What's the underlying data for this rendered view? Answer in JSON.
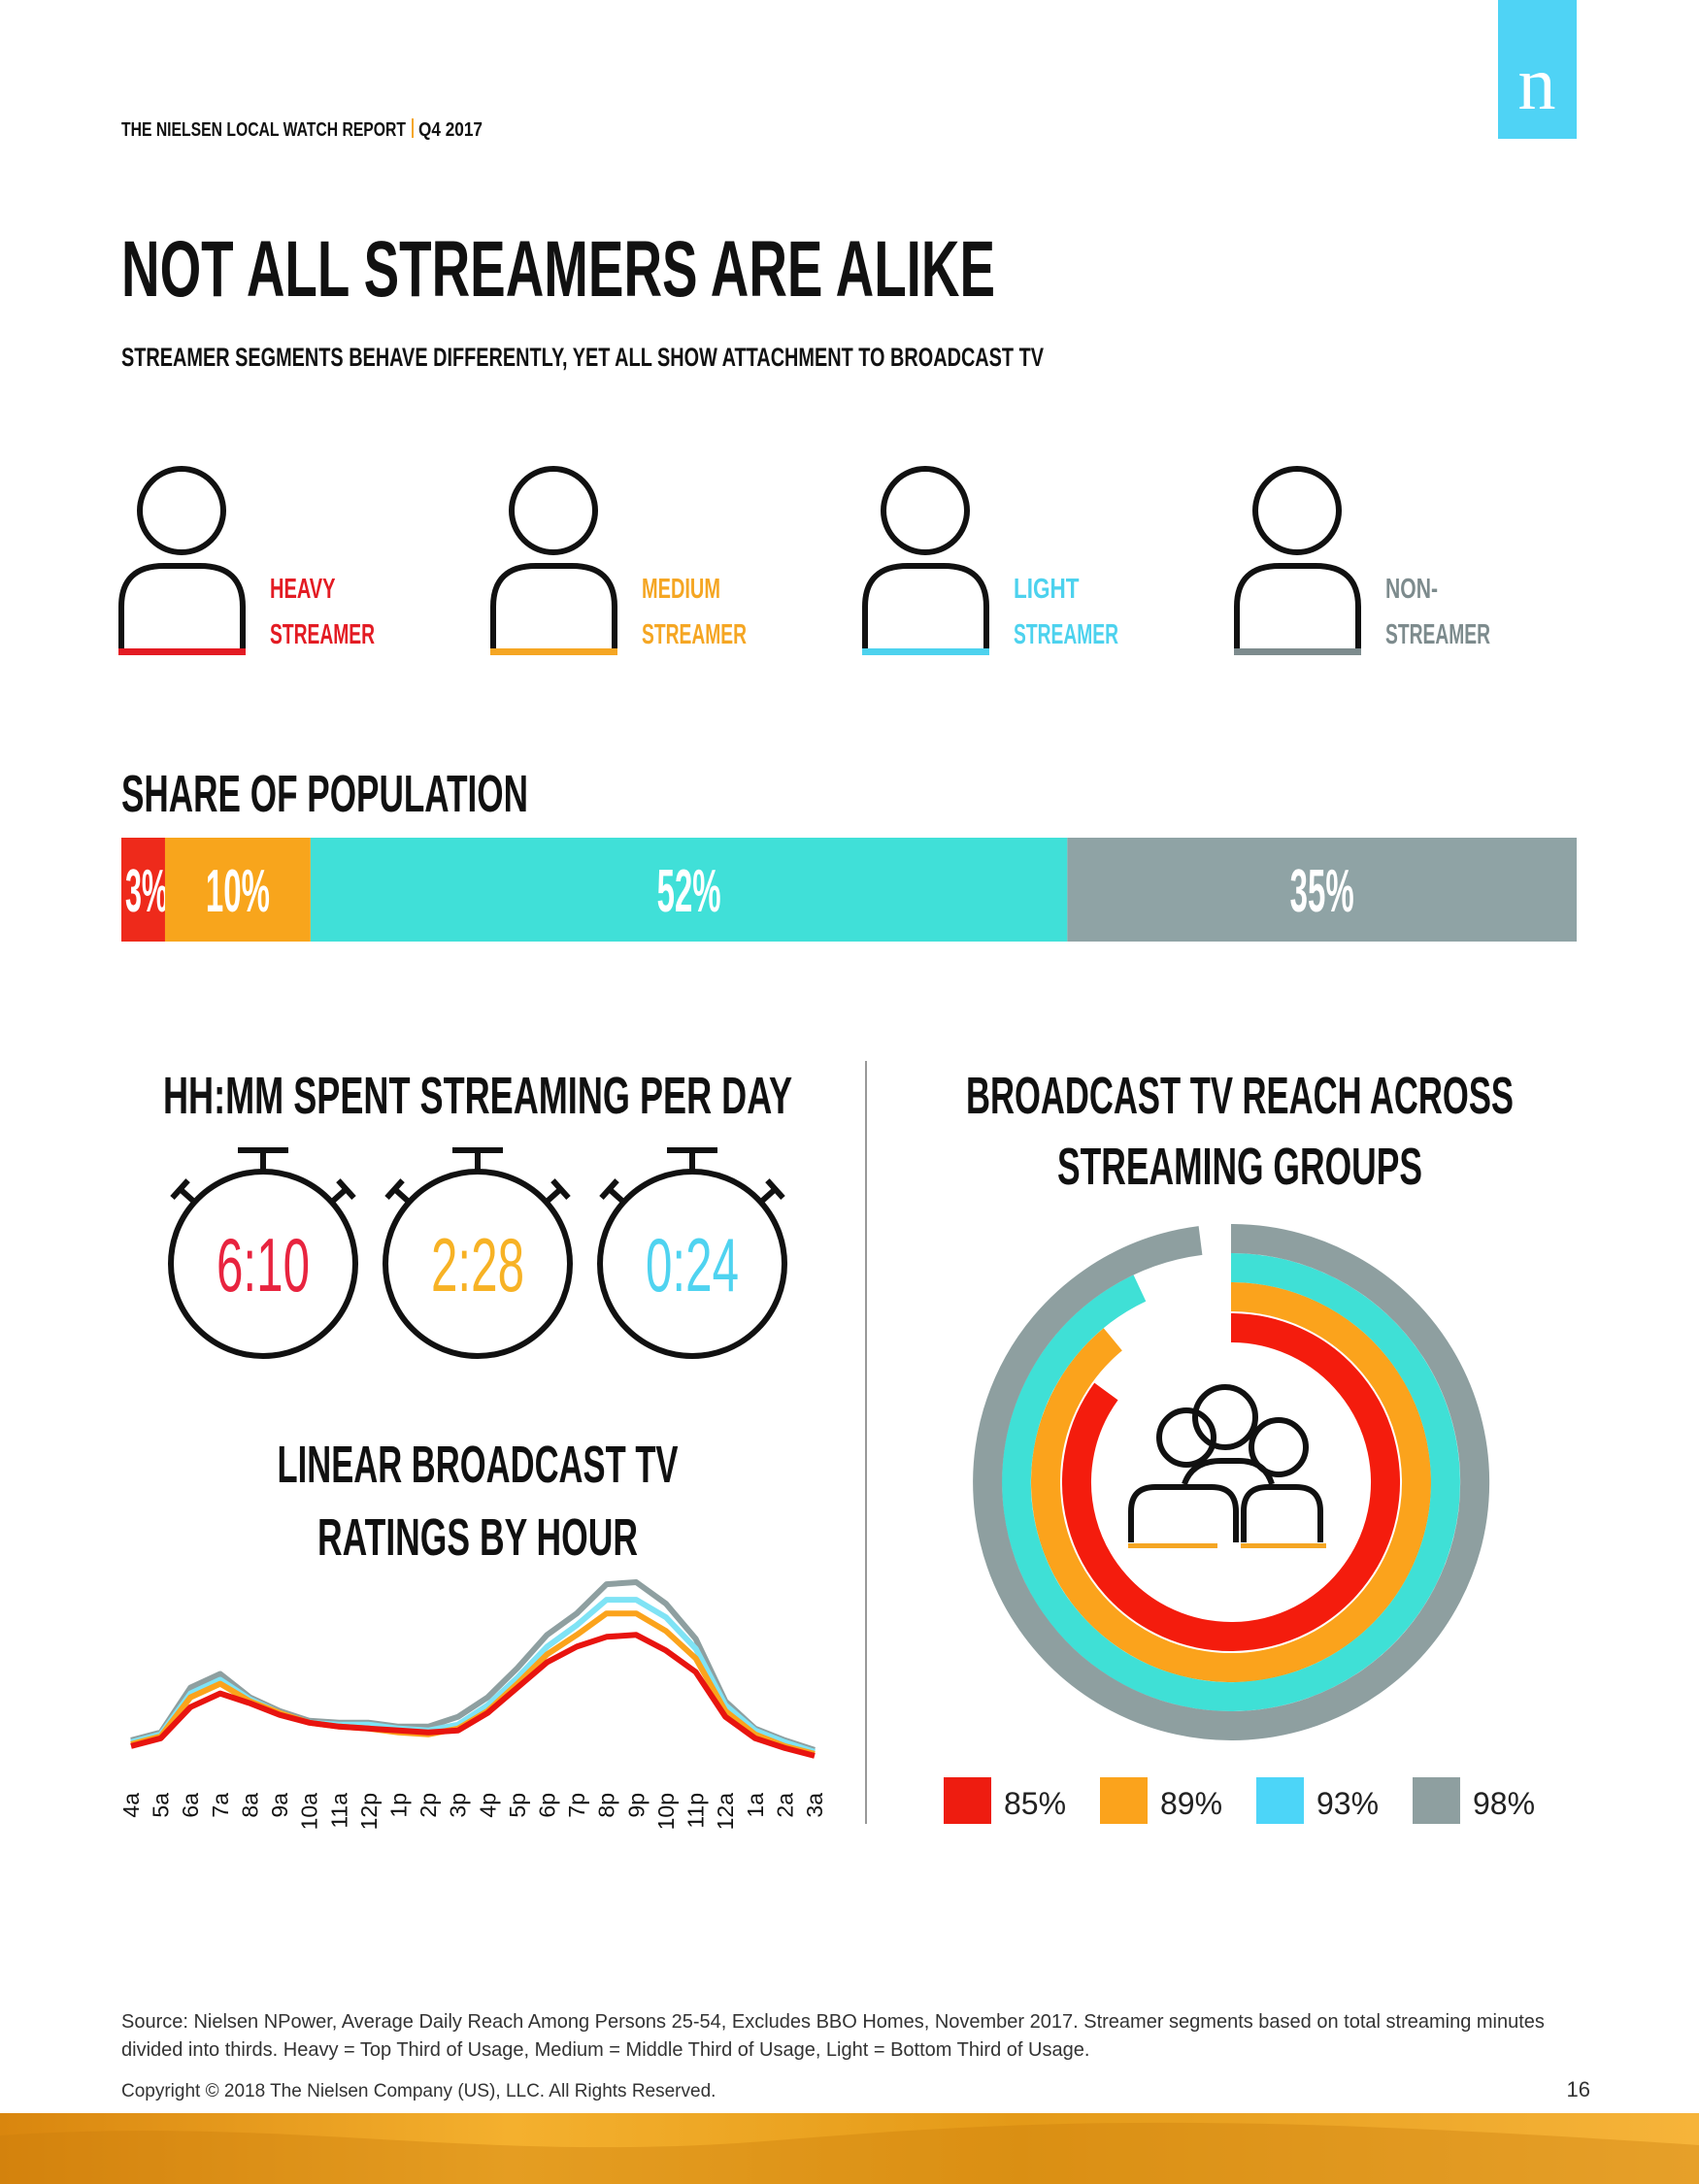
{
  "header": {
    "report": "THE NIELSEN LOCAL WATCH REPORT",
    "quarter": "Q4 2017",
    "logo": "n"
  },
  "title": "NOT ALL STREAMERS ARE ALIKE",
  "subtitle": "STREAMER SEGMENTS BEHAVE DIFFERENTLY, YET ALL SHOW ATTACHMENT TO BROADCAST TV",
  "segments": [
    {
      "lines": [
        "HEAVY",
        "STREAMER"
      ],
      "color": "#e31b23"
    },
    {
      "lines": [
        "MEDIUM",
        "STREAMER"
      ],
      "color": "#f5a623"
    },
    {
      "lines": [
        "LIGHT",
        "STREAMER"
      ],
      "color": "#4dd2ee"
    },
    {
      "lines": [
        "NON-",
        "STREAMER"
      ],
      "color": "#7d8b8d"
    }
  ],
  "streaming_time": {
    "title": "HH:MM SPENT STREAMING PER DAY",
    "times": [
      {
        "label": "6:10",
        "color": "#e8243f"
      },
      {
        "label": "2:28",
        "color": "#f7b225"
      },
      {
        "label": "0:24",
        "color": "#4fd3f0"
      }
    ]
  },
  "chart_data": [
    {
      "type": "stacked-bar",
      "title": "SHARE OF POPULATION",
      "values": [
        3,
        10,
        52,
        35
      ],
      "value_labels": [
        "3%",
        "10%",
        "52%",
        "35%"
      ],
      "colors": [
        "#ee2a1b",
        "#f8a51c",
        "#40e0d8",
        "#8fa3a5"
      ],
      "xlim": [
        0,
        100
      ]
    },
    {
      "type": "line",
      "title": [
        "LINEAR BROADCAST TV",
        "RATINGS BY HOUR"
      ],
      "categories": [
        "4a",
        "5a",
        "6a",
        "7a",
        "8a",
        "9a",
        "10a",
        "11a",
        "12p",
        "1p",
        "2p",
        "3p",
        "4p",
        "5p",
        "6p",
        "7p",
        "8p",
        "9p",
        "10p",
        "11p",
        "12a",
        "1a",
        "2a",
        "3a"
      ],
      "ylim": [
        0,
        10
      ],
      "series": [
        {
          "color": "#8e9fa0",
          "values": [
            1.4,
            1.8,
            4.1,
            4.8,
            3.6,
            2.9,
            2.4,
            2.3,
            2.3,
            2.1,
            2.1,
            2.6,
            3.6,
            5.1,
            6.8,
            7.9,
            9.4,
            9.5,
            8.4,
            6.6,
            3.4,
            2.0,
            1.4,
            0.9
          ]
        },
        {
          "color": "#7fe3f5",
          "values": [
            1.3,
            1.7,
            3.8,
            4.5,
            3.5,
            2.8,
            2.3,
            2.2,
            2.2,
            2.0,
            1.9,
            2.2,
            3.2,
            4.6,
            6.2,
            7.3,
            8.6,
            8.6,
            7.7,
            6.1,
            3.2,
            1.9,
            1.3,
            0.8
          ]
        },
        {
          "color": "#fba31c",
          "values": [
            1.2,
            1.6,
            3.6,
            4.3,
            3.4,
            2.8,
            2.3,
            2.1,
            2.0,
            1.8,
            1.7,
            2.0,
            2.9,
            4.3,
            5.8,
            6.8,
            7.9,
            7.9,
            7.0,
            5.6,
            2.9,
            1.7,
            1.1,
            0.7
          ]
        },
        {
          "color": "#e8140f",
          "values": [
            1.1,
            1.5,
            3.1,
            3.8,
            3.3,
            2.7,
            2.3,
            2.1,
            2.0,
            1.9,
            1.8,
            1.9,
            2.8,
            4.1,
            5.4,
            6.2,
            6.7,
            6.8,
            6.0,
            4.9,
            2.6,
            1.5,
            1.0,
            0.6
          ]
        }
      ]
    },
    {
      "type": "radial-bar",
      "title": [
        "BROADCAST TV REACH ACROSS",
        "STREAMING GROUPS"
      ],
      "values": [
        85,
        89,
        93,
        98
      ],
      "value_labels": [
        "85%",
        "89%",
        "93%",
        "98%"
      ],
      "colors": [
        "#f41c0d",
        "#fba31c",
        "#3fe0d6",
        "#8e9fa0"
      ],
      "legend_colors": [
        "#ee1c10",
        "#fba31c",
        "#4cd5f8",
        "#8e9fa0"
      ],
      "xlim": [
        0,
        100
      ]
    }
  ],
  "footer": {
    "source": [
      "Source: Nielsen NPower, Average Daily Reach Among Persons 25-54, Excludes BBO Homes, November 2017. Streamer segments based on total streaming minutes",
      "divided into thirds. Heavy = Top Third of Usage, Medium = Middle Third of Usage, Light = Bottom Third of Usage."
    ],
    "copyright": "Copyright © 2018 The Nielsen Company (US), LLC. All Rights Reserved.",
    "page": "16"
  }
}
